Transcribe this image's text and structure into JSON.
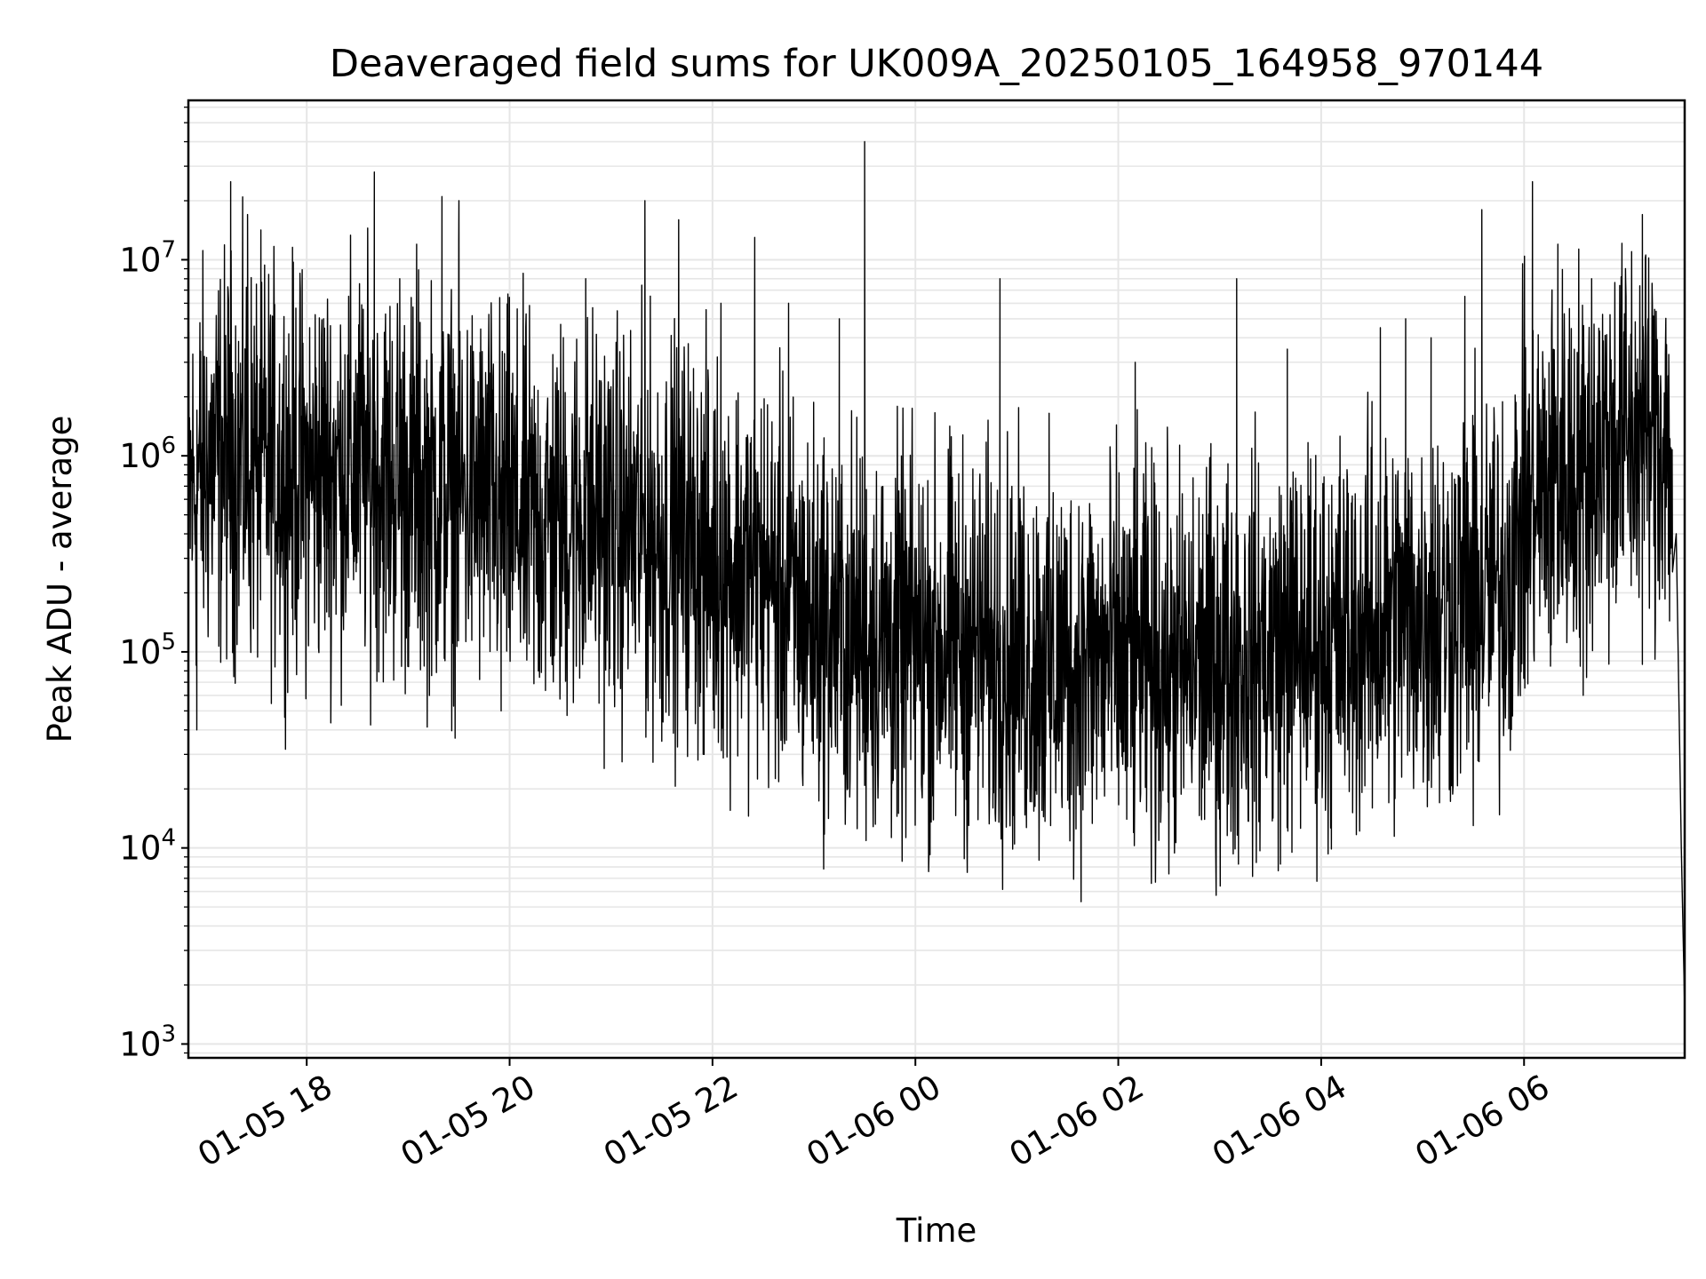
{
  "chart_data": {
    "type": "line",
    "title": "Deaveraged field sums for UK009A_20250105_164958_970144",
    "xlabel": "Time",
    "ylabel": "Peak ADU - average",
    "y_scale": "log",
    "ylim": [
      850,
      65000000
    ],
    "xlim": [
      "01-05 16:50",
      "01-06 07:35"
    ],
    "x_ticks": [
      {
        "time": "01-05 18:00",
        "label": "01-05 18"
      },
      {
        "time": "01-05 20:00",
        "label": "01-05 20"
      },
      {
        "time": "01-05 22:00",
        "label": "01-05 22"
      },
      {
        "time": "01-06 00:00",
        "label": "01-06 00"
      },
      {
        "time": "01-06 02:00",
        "label": "01-06 02"
      },
      {
        "time": "01-06 04:00",
        "label": "01-06 04"
      },
      {
        "time": "01-06 06:00",
        "label": "01-06 06"
      }
    ],
    "y_ticks": [
      {
        "value": 1000,
        "base": "10",
        "exp": "3"
      },
      {
        "value": 10000,
        "base": "10",
        "exp": "4"
      },
      {
        "value": 100000,
        "base": "10",
        "exp": "5"
      },
      {
        "value": 1000000,
        "base": "10",
        "exp": "6"
      },
      {
        "value": 10000000,
        "base": "10",
        "exp": "7"
      }
    ],
    "grid": true,
    "line_color": "#000000",
    "grid_color": "#e6e6e6",
    "series": [
      {
        "x": [
          "01-05 16:50",
          "01-05 17:00",
          "01-05 17:15",
          "01-05 17:30",
          "01-05 17:45",
          "01-05 18:00",
          "01-05 18:15",
          "01-05 18:30",
          "01-05 18:45",
          "01-05 19:00",
          "01-05 19:15",
          "01-05 19:30",
          "01-05 19:45",
          "01-05 20:00",
          "01-05 20:15",
          "01-05 20:30",
          "01-05 20:45",
          "01-05 21:00",
          "01-05 21:15",
          "01-05 21:30",
          "01-05 21:45",
          "01-05 22:00",
          "01-05 22:15",
          "01-05 22:30",
          "01-05 22:45",
          "01-05 23:00",
          "01-05 23:15",
          "01-05 23:30",
          "01-05 23:45",
          "01-06 00:00",
          "01-06 00:15",
          "01-06 00:30",
          "01-06 00:45",
          "01-06 01:00",
          "01-06 01:15",
          "01-06 01:30",
          "01-06 01:45",
          "01-06 02:00",
          "01-06 02:15",
          "01-06 02:30",
          "01-06 02:45",
          "01-06 03:00",
          "01-06 03:15",
          "01-06 03:30",
          "01-06 03:45",
          "01-06 04:00",
          "01-06 04:15",
          "01-06 04:30",
          "01-06 04:45",
          "01-06 05:00",
          "01-06 05:15",
          "01-06 05:30",
          "01-06 05:45",
          "01-06 06:00",
          "01-06 06:15",
          "01-06 06:30",
          "01-06 06:45",
          "01-06 07:00",
          "01-06 07:15",
          "01-06 07:25",
          "01-06 07:30",
          "01-06 07:33",
          "01-06 07:35"
        ],
        "y": [
          600000,
          900000,
          1000000,
          900000,
          850000,
          800000,
          850000,
          900000,
          800000,
          700000,
          650000,
          650000,
          600000,
          500000,
          450000,
          450000,
          500000,
          450000,
          400000,
          400000,
          380000,
          300000,
          280000,
          250000,
          180000,
          150000,
          130000,
          120000,
          110000,
          110000,
          110000,
          105000,
          100000,
          95000,
          90000,
          90000,
          90000,
          90000,
          85000,
          80000,
          85000,
          90000,
          95000,
          100000,
          110000,
          110000,
          120000,
          130000,
          150000,
          160000,
          170000,
          190000,
          200000,
          500000,
          700000,
          900000,
          1100000,
          1200000,
          1300000,
          1300000,
          400000,
          10000,
          1500
        ],
        "spikes_high": [
          [
            "01-05 17:15",
            25000000
          ],
          [
            "01-05 17:25",
            17000000
          ],
          [
            "01-05 18:10",
            5000000
          ],
          [
            "01-05 18:40",
            28000000
          ],
          [
            "01-05 18:55",
            8000000
          ],
          [
            "01-05 19:20",
            21000000
          ],
          [
            "01-05 19:30",
            20000000
          ],
          [
            "01-05 19:05",
            12000000
          ],
          [
            "01-05 20:45",
            8000000
          ],
          [
            "01-05 21:20",
            20000000
          ],
          [
            "01-05 21:40",
            16000000
          ],
          [
            "01-05 22:05",
            6000000
          ],
          [
            "01-05 22:25",
            13000000
          ],
          [
            "01-05 22:45",
            6000000
          ],
          [
            "01-05 23:15",
            5000000
          ],
          [
            "01-05 23:30",
            40000000
          ],
          [
            "01-06 00:50",
            8000000
          ],
          [
            "01-06 02:10",
            3000000
          ],
          [
            "01-06 03:10",
            8000000
          ],
          [
            "01-06 03:40",
            3500000
          ],
          [
            "01-06 04:35",
            4500000
          ],
          [
            "01-06 04:50",
            5000000
          ],
          [
            "01-06 05:05",
            4000000
          ],
          [
            "01-06 05:25",
            6500000
          ],
          [
            "01-06 05:35",
            18000000
          ],
          [
            "01-06 06:05",
            25000000
          ],
          [
            "01-06 06:20",
            12000000
          ],
          [
            "01-06 06:40",
            8000000
          ],
          [
            "01-06 07:00",
            9000000
          ],
          [
            "01-06 07:10",
            17000000
          ]
        ],
        "spikes_low": [
          [
            "01-05 16:55",
            40000
          ],
          [
            "01-05 19:55",
            50000
          ],
          [
            "01-05 21:30",
            35000
          ],
          [
            "01-05 21:55",
            30000
          ],
          [
            "01-05 22:30",
            40000
          ],
          [
            "01-05 23:20",
            20000
          ],
          [
            "01-05 23:50",
            15000
          ],
          [
            "01-06 00:30",
            20000
          ],
          [
            "01-06 01:20",
            13000
          ],
          [
            "01-06 01:35",
            12500
          ],
          [
            "01-06 02:05",
            14000
          ],
          [
            "01-06 03:00",
            14000
          ],
          [
            "01-06 03:40",
            18000
          ],
          [
            "01-06 04:40",
            17000
          ],
          [
            "01-06 05:10",
            17000
          ],
          [
            "01-06 05:30",
            13000
          ],
          [
            "01-06 06:35",
            60000
          ]
        ]
      }
    ]
  }
}
